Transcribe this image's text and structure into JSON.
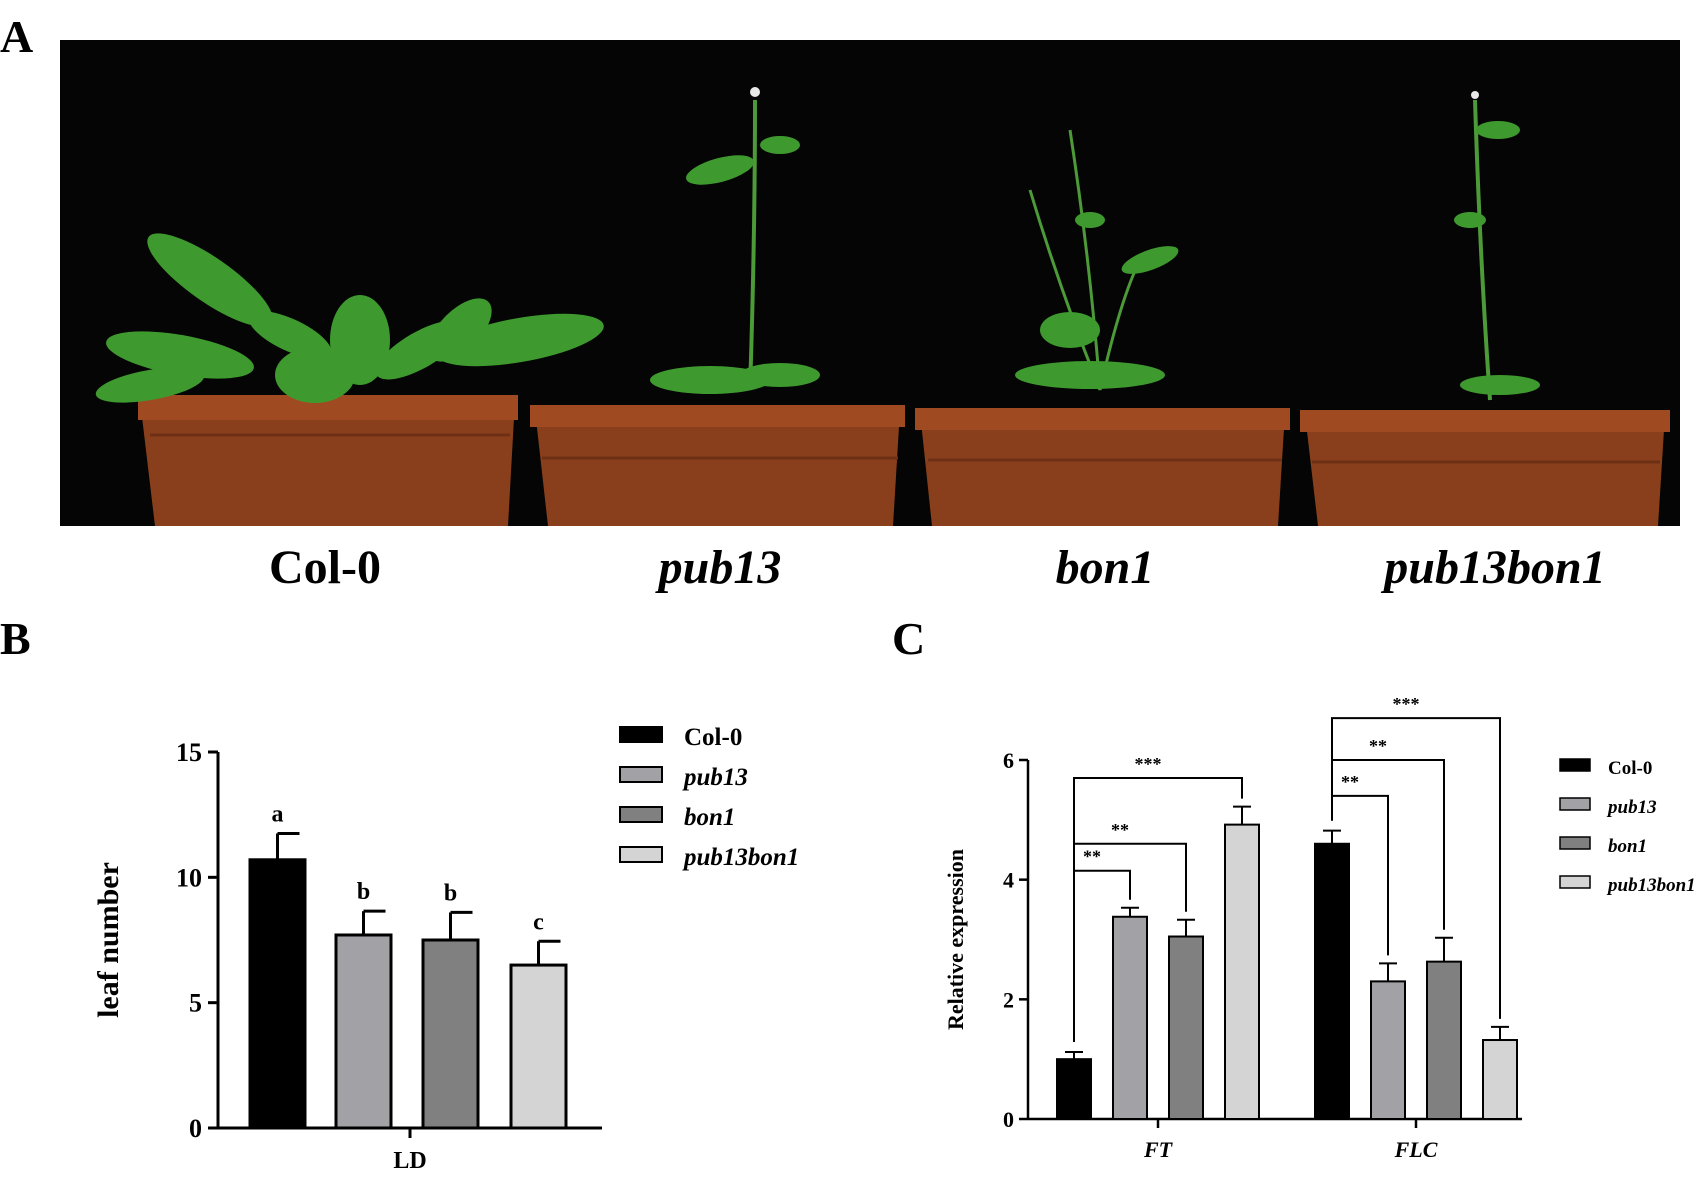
{
  "panel_a": {
    "letter": "A",
    "genotypes": [
      {
        "label": "Col-0",
        "italic": false
      },
      {
        "label": "pub13",
        "italic": true
      },
      {
        "label": "bon1",
        "italic": true
      },
      {
        "label": "pub13bon1",
        "italic": true
      }
    ]
  },
  "panel_b": {
    "letter": "B"
  },
  "panel_c": {
    "letter": "C"
  },
  "colors": {
    "Col-0": "#000000",
    "pub13": "#a2a2a6",
    "bon1": "#808080",
    "pub13bon1": "#d4d4d4"
  },
  "chart_data": [
    {
      "type": "bar",
      "categories": [
        "LD"
      ],
      "ylabel": "leaf number",
      "ylim": [
        0,
        15
      ],
      "yticks": [
        0,
        5,
        10,
        15
      ],
      "series": [
        {
          "name": "Col-0",
          "values": [
            10.7
          ],
          "error": [
            1.05
          ],
          "letter": "a"
        },
        {
          "name": "pub13",
          "values": [
            7.7
          ],
          "error": [
            0.95
          ],
          "letter": "b"
        },
        {
          "name": "bon1",
          "values": [
            7.5
          ],
          "error": [
            1.1
          ],
          "letter": "b"
        },
        {
          "name": "pub13bon1",
          "values": [
            6.5
          ],
          "error": [
            0.95
          ],
          "letter": "c"
        }
      ],
      "legend": "right"
    },
    {
      "type": "bar",
      "categories": [
        "FT",
        "FLC"
      ],
      "ylabel": "Relative expression",
      "ylim": [
        0,
        6
      ],
      "yticks": [
        0,
        2,
        4,
        6
      ],
      "series": [
        {
          "name": "Col-0",
          "values": [
            1.0,
            4.6
          ],
          "error": [
            0.12,
            0.22
          ]
        },
        {
          "name": "pub13",
          "values": [
            3.38,
            2.3
          ],
          "error": [
            0.15,
            0.3
          ]
        },
        {
          "name": "bon1",
          "values": [
            3.05,
            2.63
          ],
          "error": [
            0.28,
            0.4
          ]
        },
        {
          "name": "pub13bon1",
          "values": [
            4.92,
            1.32
          ],
          "error": [
            0.3,
            0.22
          ]
        }
      ],
      "significance": [
        {
          "category": "FT",
          "vs": "pub13",
          "label": "**"
        },
        {
          "category": "FT",
          "vs": "bon1",
          "label": "**"
        },
        {
          "category": "FT",
          "vs": "pub13bon1",
          "label": "***"
        },
        {
          "category": "FLC",
          "vs": "pub13",
          "label": "**"
        },
        {
          "category": "FLC",
          "vs": "bon1",
          "label": "**"
        },
        {
          "category": "FLC",
          "vs": "pub13bon1",
          "label": "***"
        }
      ],
      "legend": "right"
    }
  ]
}
